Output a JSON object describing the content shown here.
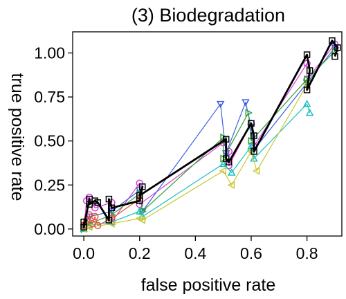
{
  "chart_data": {
    "type": "line",
    "title": "(3) Biodegradation",
    "xlabel": "false positive rate",
    "ylabel": "true positive rate",
    "xlim": [
      -0.04,
      0.925
    ],
    "ylim": [
      -0.04,
      1.12
    ],
    "xticks": [
      0.0,
      0.2,
      0.4,
      0.6,
      0.8
    ],
    "yticks": [
      0.0,
      0.25,
      0.5,
      0.75,
      1.0
    ],
    "x_tick_labels": [
      "0.0",
      "0.2",
      "0.4",
      "0.6",
      "0.8"
    ],
    "y_tick_labels": [
      "0.00",
      "0.25",
      "0.50",
      "0.75",
      "1.00"
    ],
    "grid": false,
    "series": [
      {
        "color": "#d63ad6",
        "marker": "circle",
        "points": [
          [
            0.0,
            0.01
          ],
          [
            0.01,
            0.16
          ],
          [
            0.02,
            0.18
          ],
          [
            0.04,
            0.12
          ],
          [
            0.1,
            0.15
          ],
          [
            0.1,
            0.04
          ],
          [
            0.2,
            0.26
          ],
          [
            0.2,
            0.14
          ],
          [
            0.5,
            0.49
          ],
          [
            0.52,
            0.44
          ],
          [
            0.52,
            0.36
          ],
          [
            0.6,
            0.6
          ],
          [
            0.61,
            0.47
          ],
          [
            0.8,
            0.94
          ],
          [
            0.8,
            0.85
          ],
          [
            0.9,
            1.05
          ]
        ]
      },
      {
        "color": "#3d5ce8",
        "marker": "triangle-down",
        "points": [
          [
            0.0,
            0.01
          ],
          [
            0.02,
            0.07
          ],
          [
            0.1,
            0.1
          ],
          [
            0.2,
            0.22
          ],
          [
            0.21,
            0.1
          ],
          [
            0.49,
            0.71
          ],
          [
            0.51,
            0.43
          ],
          [
            0.58,
            0.72
          ],
          [
            0.6,
            0.58
          ],
          [
            0.61,
            0.45
          ],
          [
            0.8,
            0.83
          ],
          [
            0.9,
            1.03
          ]
        ]
      },
      {
        "color": "#2ea02e",
        "marker": "triangle-right",
        "points": [
          [
            0.0,
            0.0
          ],
          [
            0.02,
            0.03
          ],
          [
            0.1,
            0.08
          ],
          [
            0.2,
            0.2
          ],
          [
            0.21,
            0.1
          ],
          [
            0.5,
            0.52
          ],
          [
            0.5,
            0.4
          ],
          [
            0.59,
            0.66
          ],
          [
            0.6,
            0.5
          ],
          [
            0.8,
            0.85
          ],
          [
            0.9,
            1.01
          ]
        ]
      },
      {
        "color": "#17bfbf",
        "marker": "triangle-up",
        "points": [
          [
            0.0,
            0.0
          ],
          [
            0.02,
            0.02
          ],
          [
            0.1,
            0.04
          ],
          [
            0.2,
            0.1
          ],
          [
            0.21,
            0.07
          ],
          [
            0.5,
            0.37
          ],
          [
            0.53,
            0.32
          ],
          [
            0.6,
            0.47
          ],
          [
            0.61,
            0.4
          ],
          [
            0.8,
            0.71
          ],
          [
            0.81,
            0.66
          ]
        ]
      },
      {
        "color": "#c8c832",
        "marker": "triangle-left",
        "points": [
          [
            0.0,
            0.0
          ],
          [
            0.02,
            0.01
          ],
          [
            0.1,
            0.03
          ],
          [
            0.2,
            0.06
          ],
          [
            0.21,
            0.05
          ],
          [
            0.5,
            0.33
          ],
          [
            0.53,
            0.25
          ],
          [
            0.6,
            0.44
          ],
          [
            0.62,
            0.33
          ],
          [
            0.8,
            0.82
          ]
        ]
      },
      {
        "color": "#e8503a",
        "marker": "circle",
        "points": [
          [
            0.0,
            0.02
          ],
          [
            0.01,
            0.05
          ],
          [
            0.02,
            0.08
          ],
          [
            0.03,
            0.03
          ],
          [
            0.04,
            0.07
          ],
          [
            0.05,
            0.02
          ],
          [
            0.1,
            0.06
          ],
          [
            0.2,
            0.17
          ]
        ]
      },
      {
        "color": "#000000",
        "marker": "square",
        "bold": true,
        "points": [
          [
            0.0,
            0.04
          ],
          [
            0.0,
            0.01
          ],
          [
            0.02,
            0.17
          ],
          [
            0.02,
            0.14
          ],
          [
            0.04,
            0.16
          ],
          [
            0.05,
            0.15
          ],
          [
            0.09,
            0.05
          ],
          [
            0.09,
            0.17
          ],
          [
            0.1,
            0.12
          ],
          [
            0.2,
            0.16
          ],
          [
            0.21,
            0.24
          ],
          [
            0.2,
            0.19
          ],
          [
            0.51,
            0.51
          ],
          [
            0.51,
            0.4
          ],
          [
            0.52,
            0.38
          ],
          [
            0.6,
            0.6
          ],
          [
            0.61,
            0.53
          ],
          [
            0.61,
            0.44
          ],
          [
            0.8,
            0.99
          ],
          [
            0.81,
            0.9
          ],
          [
            0.8,
            0.79
          ],
          [
            0.89,
            1.07
          ],
          [
            0.91,
            1.03
          ],
          [
            0.9,
            0.98
          ]
        ]
      }
    ]
  }
}
